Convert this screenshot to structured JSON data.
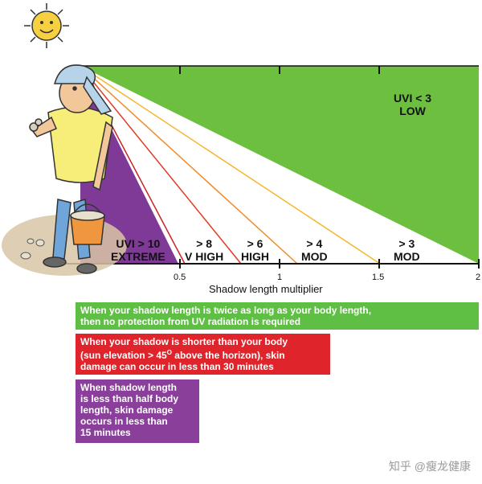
{
  "zones": [
    {
      "line1": "UVI < 3",
      "line2": "LOW",
      "color": "#6cbf3f"
    },
    {
      "line1": "> 3",
      "line2": "MOD",
      "color": "#f5b731"
    },
    {
      "line1": "> 4",
      "line2": "MOD",
      "color": "#f08a26"
    },
    {
      "line1": "> 6",
      "line2": "HIGH",
      "color": "#e23b26"
    },
    {
      "line1": "> 8",
      "line2": "V HIGH",
      "color": "#c8242a"
    },
    {
      "line1": "UVI > 10",
      "line2": "EXTREME",
      "color": "#7e3a96"
    }
  ],
  "axis": {
    "title": "Shadow length multiplier",
    "ticks": [
      "0.5",
      "1",
      "1.5",
      "2"
    ]
  },
  "notices": {
    "green": {
      "line1": "When your shadow length is twice as long as your body length,",
      "line2": "then no protection from UV radiation is required",
      "color": "#5fbf45"
    },
    "red": {
      "line1": "When your shadow is shorter than your body",
      "line2_a": "(sun elevation > 45",
      "line2_sup": "O",
      "line2_b": " above the horizon), skin",
      "line3": "damage can occur in less than 30 minutes",
      "color": "#e0242b"
    },
    "purple": {
      "line1": "When shadow length",
      "line2": "is less than half body",
      "line3": "length, skin damage",
      "line4": "occurs in less than",
      "line5": "15 minutes",
      "color": "#8a3f9b"
    }
  },
  "watermark": "知乎 @瘦龙健康"
}
